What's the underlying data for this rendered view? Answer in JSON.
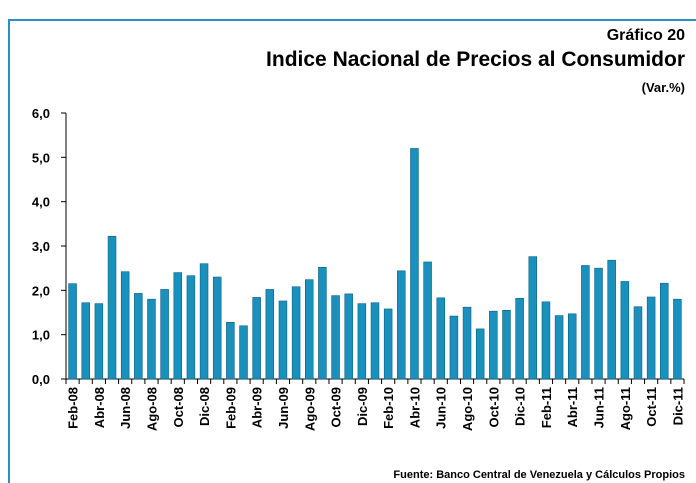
{
  "chart_data": {
    "type": "bar",
    "title": "Gráfico 20",
    "subtitle": "Indice Nacional de Precios al Consumidor",
    "unit_label": "(Var.%)",
    "source": "Fuente: Banco Central de Venezuela y Cálculos Propios",
    "categories": [
      "Feb-08",
      null,
      "Abr-08",
      null,
      "Jun-08",
      null,
      "Ago-08",
      null,
      "Oct-08",
      null,
      "Dic-08",
      null,
      "Feb-09",
      null,
      "Abr-09",
      null,
      "Jun-09",
      null,
      "Ago-09",
      null,
      "Oct-09",
      null,
      "Dic-09",
      null,
      "Feb-10",
      null,
      "Abr-10",
      null,
      "Jun-10",
      null,
      "Ago-10",
      null,
      "Oct-10",
      null,
      "Dic-10",
      null,
      "Feb-11",
      null,
      "Abr-11",
      null,
      "Jun-11",
      null,
      "Ago-11",
      null,
      "Oct-11",
      null,
      "Dic-11"
    ],
    "values": [
      2.15,
      1.72,
      1.7,
      3.22,
      2.42,
      1.93,
      1.8,
      2.02,
      2.4,
      2.33,
      2.6,
      2.3,
      1.28,
      1.2,
      1.84,
      2.02,
      1.76,
      2.08,
      2.24,
      2.52,
      1.88,
      1.92,
      1.7,
      1.72,
      1.58,
      2.44,
      5.2,
      2.64,
      1.83,
      1.42,
      1.62,
      1.13,
      1.53,
      1.55,
      1.82,
      2.76,
      1.74,
      1.43,
      1.47,
      2.56,
      2.5,
      2.68,
      2.2,
      1.63,
      1.85,
      2.16,
      1.8
    ],
    "color": "#1a90bd",
    "ylim": [
      0,
      6
    ],
    "yticks": [
      {
        "value": 0,
        "label": "0,0"
      },
      {
        "value": 1,
        "label": "1,0"
      },
      {
        "value": 2,
        "label": "2,0"
      },
      {
        "value": 3,
        "label": "3,0"
      },
      {
        "value": 4,
        "label": "4,0"
      },
      {
        "value": 5,
        "label": "5,0"
      },
      {
        "value": 6,
        "label": "6,0"
      }
    ],
    "grid": false
  }
}
